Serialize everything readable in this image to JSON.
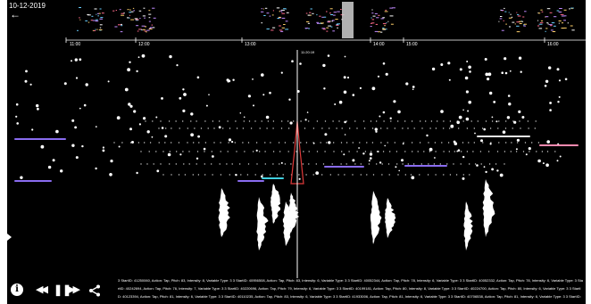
{
  "header": {
    "date": "10-12-2019",
    "back_icon": "arrow-left-icon"
  },
  "timeline": {
    "ticks": [
      "11:00",
      "12:00",
      "13:00",
      "14:00",
      "15:00",
      "16:00"
    ],
    "cursor_label": "11:20:19"
  },
  "controls": {
    "info_icon": "info-icon",
    "rewind_icon": "rewind-icon",
    "pause_icon": "pause-icon",
    "forward_icon": "fast-forward-icon",
    "share_icon": "share-icon",
    "info_glyph": "i"
  },
  "log": {
    "text": "3 StartID: 41250060, Action: Tap, Pitch: 83, Intensity: 8, Variable Type: 3 3 StartID: 40956508, Action: Tap, Pitch: 83, Intensity: 6, Variable Type: 3 3 StartID: 40052344, Action: Tap, Pitch: 78, Intensity: 6, Variable Type: 3 3 StartID: 40052332, Action: Tap, Pitch: 78, Intensity: 6, Variable Type: 3 StartID: 40242694, Action: Tap, Pitch: 76, Intensity: 7, Variable Type: 3 3 StartID: 40220696, Action: Tap, Pitch: 79, Intensity: 6, Variable Type: 3 3 StartID: 40199181, Action: Tap, Pitch: 80, Intensity: 8, Variable Type: 3 3 StartID: 40224700, Action: Tap, Pitch: 80, Intensity: 6, Variable Type: 3 3 StartID: 40123394, Action: Tap, Pitch: 81, Intensity: 6, Variable Type: 3 3 StartID: 40110235, Action: Tap, Pitch: 83, Intensity: 6, Variable Type: 3 3 StartID: 41933006, Action: Tap, Pitch: 81, Intensity: 6, Variable Type: 3 3 StartID: 40706538, Action: Tap, Pitch: 81, Intensity: 6, Variable Type: 3 3 StartID: 40733964, Action: Tap, Pitch: 84, Intensity: 6, Variable Type: 3 3 StartID: 40956508, Action: Tap, Pitch: 83, Intensity: 8, Variable Type: 3"
  },
  "colors": {
    "background": "#000000",
    "dot": "#ffffff",
    "accent_purple": "#8a6cf0",
    "accent_red": "#e03a3a",
    "accent_cyan": "#40d0e0",
    "accent_pink": "#ff8ab0"
  }
}
